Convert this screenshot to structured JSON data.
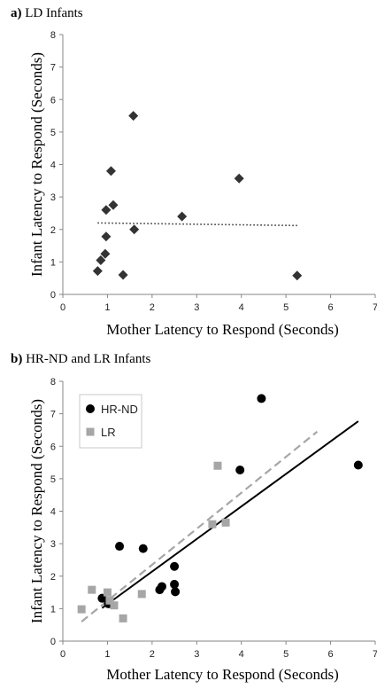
{
  "chart_data": [
    {
      "type": "scatter",
      "panel_label": "a)",
      "title": "LD Infants",
      "xlabel": "Mother Latency to Respond (Seconds)",
      "ylabel": "Infant Latency to Respond (Seconds)",
      "xlim": [
        0,
        7
      ],
      "ylim": [
        0,
        8
      ],
      "xticks": [
        0,
        1,
        2,
        3,
        4,
        5,
        6,
        7
      ],
      "yticks": [
        0,
        1,
        2,
        3,
        4,
        5,
        6,
        7,
        8
      ],
      "grid": false,
      "series": [
        {
          "marker": "diamond",
          "color": "#333333",
          "points": [
            [
              0.78,
              0.72
            ],
            [
              0.85,
              1.05
            ],
            [
              0.95,
              1.25
            ],
            [
              0.97,
              1.78
            ],
            [
              0.97,
              2.6
            ],
            [
              1.08,
              3.8
            ],
            [
              1.13,
              2.75
            ],
            [
              1.35,
              0.6
            ],
            [
              1.58,
              5.5
            ],
            [
              1.6,
              2.0
            ],
            [
              2.67,
              2.4
            ],
            [
              3.95,
              3.57
            ],
            [
              5.25,
              0.58
            ]
          ]
        }
      ],
      "trendlines": [
        {
          "style": "dotted",
          "color": "#333333",
          "x": [
            0.78,
            5.25
          ],
          "y": [
            2.2,
            2.12
          ]
        }
      ]
    },
    {
      "type": "scatter",
      "panel_label": "b)",
      "title": "HR-ND and LR Infants",
      "xlabel": "Mother Latency to Respond (Seconds)",
      "ylabel": "Infant Latency to Respond (Seconds)",
      "xlim": [
        0,
        7
      ],
      "ylim": [
        0,
        8
      ],
      "xticks": [
        0,
        1,
        2,
        3,
        4,
        5,
        6,
        7
      ],
      "yticks": [
        0,
        1,
        2,
        3,
        4,
        5,
        6,
        7,
        8
      ],
      "grid": false,
      "legend": {
        "position": "top-left",
        "entries": [
          "HR-ND",
          "LR"
        ]
      },
      "series": [
        {
          "name": "HR-ND",
          "marker": "circle",
          "color": "#000000",
          "points": [
            [
              0.88,
              1.32
            ],
            [
              1.02,
              1.15
            ],
            [
              1.27,
              2.92
            ],
            [
              1.8,
              2.85
            ],
            [
              2.17,
              1.58
            ],
            [
              2.22,
              1.68
            ],
            [
              2.5,
              2.3
            ],
            [
              2.5,
              1.75
            ],
            [
              2.52,
              1.52
            ],
            [
              3.97,
              5.27
            ],
            [
              4.45,
              7.47
            ],
            [
              6.62,
              5.42
            ]
          ]
        },
        {
          "name": "LR",
          "marker": "square",
          "color": "#a6a6a6",
          "points": [
            [
              0.42,
              0.98
            ],
            [
              0.65,
              1.58
            ],
            [
              1.0,
              1.5
            ],
            [
              1.05,
              1.25
            ],
            [
              1.15,
              1.1
            ],
            [
              1.35,
              0.7
            ],
            [
              1.77,
              1.45
            ],
            [
              3.35,
              3.6
            ],
            [
              3.47,
              5.4
            ],
            [
              3.65,
              3.65
            ]
          ]
        }
      ],
      "trendlines": [
        {
          "series": "HR-ND",
          "style": "solid",
          "color": "#000000",
          "x": [
            0.88,
            6.62
          ],
          "y": [
            1.02,
            6.77
          ]
        },
        {
          "series": "LR",
          "style": "dashed",
          "color": "#a6a6a6",
          "x": [
            0.42,
            5.7
          ],
          "y": [
            0.6,
            6.45
          ]
        }
      ]
    }
  ]
}
